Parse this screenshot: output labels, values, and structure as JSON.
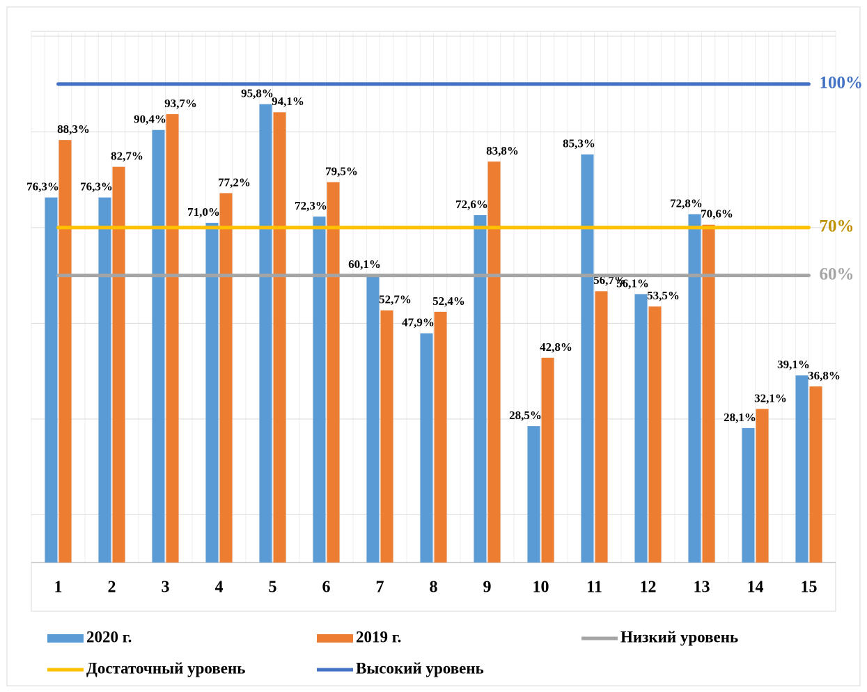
{
  "chart_data": {
    "type": "bar",
    "categories": [
      "1",
      "2",
      "3",
      "4",
      "5",
      "6",
      "7",
      "8",
      "9",
      "10",
      "11",
      "12",
      "13",
      "14",
      "15"
    ],
    "ylim": [
      0,
      110
    ],
    "yticks": [
      10,
      30,
      50,
      70,
      90,
      110
    ],
    "grid": true,
    "series": [
      {
        "name": "2020 г.",
        "type": "bar",
        "color": "#5b9bd5",
        "values": [
          76.3,
          76.3,
          90.4,
          71.0,
          95.8,
          72.3,
          60.1,
          47.9,
          72.6,
          28.5,
          85.3,
          56.1,
          72.8,
          28.1,
          39.1
        ],
        "value_labels": [
          "76,3%",
          "76,3%",
          "90,4%",
          "71,0%",
          "95,8%",
          "72,3%",
          "60,1%",
          "47,9%",
          "72,6%",
          "28,5%",
          "85,3%",
          "56,1%",
          "72,8%",
          "28,1%",
          "39,1%"
        ]
      },
      {
        "name": "2019 г.",
        "type": "bar",
        "color": "#ed7d31",
        "values": [
          88.3,
          82.7,
          93.7,
          77.2,
          94.1,
          79.5,
          52.7,
          52.4,
          83.8,
          42.8,
          56.7,
          53.5,
          70.6,
          32.1,
          36.8
        ],
        "value_labels": [
          "88,3%",
          "82,7%",
          "93,7%",
          "77,2%",
          "94,1%",
          "79,5%",
          "52,7%",
          "52,4%",
          "83,8%",
          "42,8%",
          "56,7%",
          "53,5%",
          "70,6%",
          "32,1%",
          "36,8%"
        ]
      },
      {
        "name": "Низкий уровень",
        "type": "line",
        "color": "#a5a5a5",
        "label_color": "#a5a5a5",
        "values": [
          60,
          60,
          60,
          60,
          60,
          60,
          60,
          60,
          60,
          60,
          60,
          60,
          60,
          60,
          60
        ],
        "label": "60%"
      },
      {
        "name": "Достаточный уровень",
        "type": "line",
        "color": "#ffc000",
        "label_color": "#bf9000",
        "values": [
          70,
          70,
          70,
          70,
          70,
          70,
          70,
          70,
          70,
          70,
          70,
          70,
          70,
          70,
          70
        ],
        "label": "70%"
      },
      {
        "name": "Высокий уровень",
        "type": "line",
        "color": "#4472c4",
        "label_color": "#4472c4",
        "values": [
          100,
          100,
          100,
          100,
          100,
          100,
          100,
          100,
          100,
          100,
          100,
          100,
          100,
          100,
          100
        ],
        "label": "100%"
      }
    ]
  }
}
